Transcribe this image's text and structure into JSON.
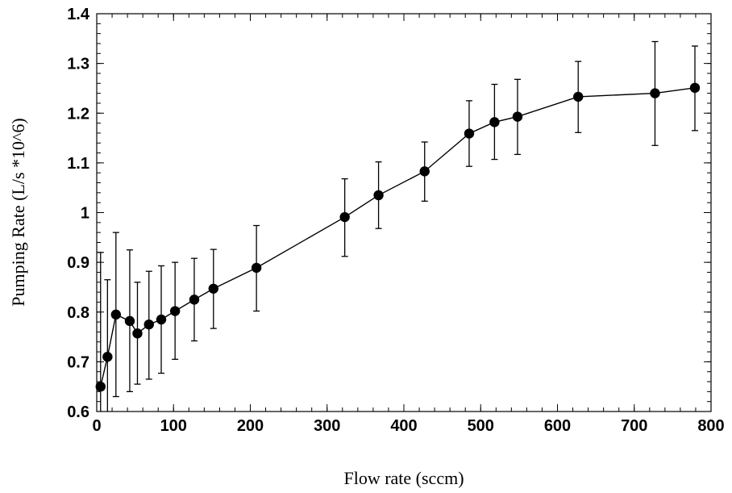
{
  "chart_data": {
    "type": "scatter",
    "title": "",
    "xlabel": "Flow rate (sccm)",
    "ylabel": "Pumping Rate (L/s *10^6)",
    "xlim": [
      0,
      800
    ],
    "ylim": [
      0.6,
      1.4
    ],
    "x_ticks": [
      "0",
      "100",
      "200",
      "300",
      "400",
      "500",
      "600",
      "700",
      "800"
    ],
    "y_ticks": [
      "0.6",
      "0.7",
      "0.8",
      "0.9",
      "1",
      "1.1",
      "1.2",
      "1.3",
      "1.4"
    ],
    "grid": false,
    "legend": "none",
    "marker": "filled-circle",
    "line_connected": true,
    "error_bars": true,
    "color": "#000000",
    "points": [
      {
        "x": 5,
        "y": 0.65,
        "err_low": 0.58,
        "err_high": 0.92
      },
      {
        "x": 14,
        "y": 0.71,
        "err_low": 0.58,
        "err_high": 0.865
      },
      {
        "x": 25,
        "y": 0.795,
        "err_low": 0.63,
        "err_high": 0.96
      },
      {
        "x": 43,
        "y": 0.782,
        "err_low": 0.64,
        "err_high": 0.925
      },
      {
        "x": 53,
        "y": 0.757,
        "err_low": 0.655,
        "err_high": 0.86
      },
      {
        "x": 68,
        "y": 0.775,
        "err_low": 0.665,
        "err_high": 0.882
      },
      {
        "x": 84,
        "y": 0.785,
        "err_low": 0.677,
        "err_high": 0.893
      },
      {
        "x": 102,
        "y": 0.802,
        "err_low": 0.705,
        "err_high": 0.9
      },
      {
        "x": 127,
        "y": 0.825,
        "err_low": 0.742,
        "err_high": 0.908
      },
      {
        "x": 152,
        "y": 0.847,
        "err_low": 0.767,
        "err_high": 0.926
      },
      {
        "x": 208,
        "y": 0.889,
        "err_low": 0.802,
        "err_high": 0.974
      },
      {
        "x": 323,
        "y": 0.991,
        "err_low": 0.912,
        "err_high": 1.068
      },
      {
        "x": 367,
        "y": 1.035,
        "err_low": 0.968,
        "err_high": 1.102
      },
      {
        "x": 427,
        "y": 1.083,
        "err_low": 1.023,
        "err_high": 1.142
      },
      {
        "x": 485,
        "y": 1.159,
        "err_low": 1.093,
        "err_high": 1.225
      },
      {
        "x": 518,
        "y": 1.182,
        "err_low": 1.107,
        "err_high": 1.258
      },
      {
        "x": 548,
        "y": 1.193,
        "err_low": 1.117,
        "err_high": 1.268
      },
      {
        "x": 627,
        "y": 1.233,
        "err_low": 1.161,
        "err_high": 1.304
      },
      {
        "x": 727,
        "y": 1.24,
        "err_low": 1.135,
        "err_high": 1.344
      },
      {
        "x": 779,
        "y": 1.251,
        "err_low": 1.165,
        "err_high": 1.335
      }
    ]
  }
}
